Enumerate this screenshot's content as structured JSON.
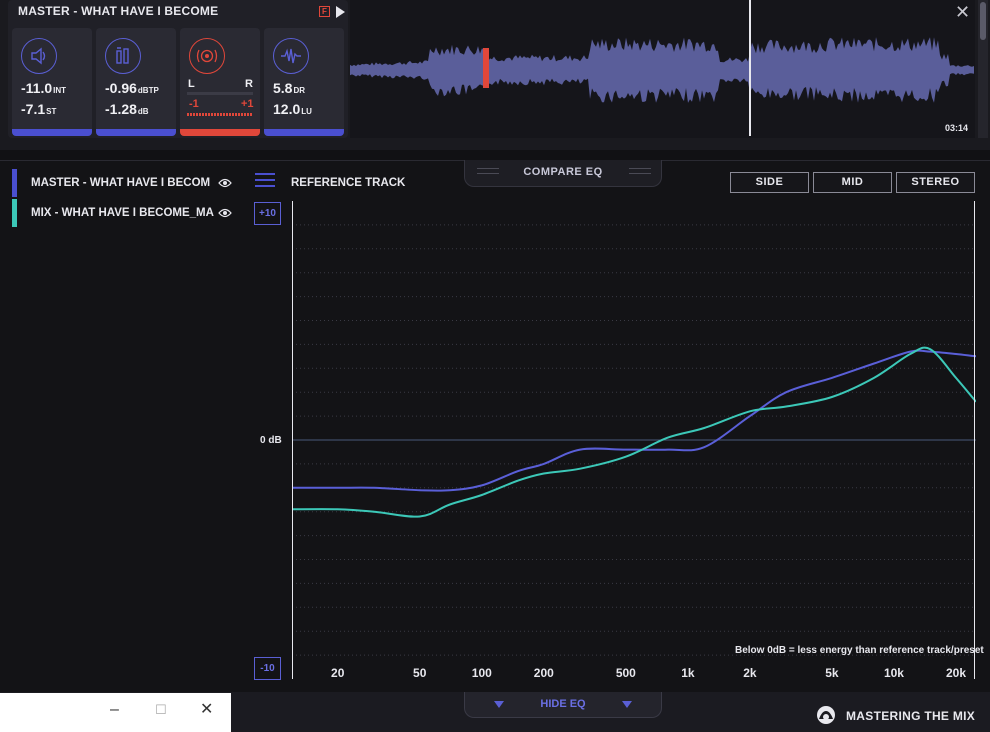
{
  "master": {
    "title": "MASTER - WHAT HAVE I BECOME",
    "format_icon": "F",
    "meters": [
      {
        "icon": "speaker-icon",
        "line1_value": "-11.0",
        "line1_unit": "INT",
        "line2_value": "-7.1",
        "line2_unit": "ST"
      },
      {
        "icon": "level-meter-icon",
        "line1_value": "-0.96",
        "line1_unit": "dBTP",
        "line2_value": "-1.28",
        "line2_unit": "dB"
      },
      {
        "icon": "stereo-field-icon",
        "left_label": "L",
        "right_label": "R",
        "minus_label": "-1",
        "plus_label": "+1"
      },
      {
        "icon": "waveform-icon",
        "line1_value": "5.8",
        "line1_unit": "DR",
        "line2_value": "12.0",
        "line2_unit": "LU"
      }
    ],
    "time": "03:14"
  },
  "compare_tab": {
    "label": "COMPARE EQ"
  },
  "tracks": [
    {
      "name": "MASTER - WHAT HAVE I BECOM",
      "color": "#4a4fd0"
    },
    {
      "name": "MIX - WHAT HAVE I BECOME_MA",
      "color": "#3cc8b8"
    }
  ],
  "reference": {
    "label": "REFERENCE TRACK"
  },
  "modes": {
    "side": "SIDE",
    "mid": "MID",
    "stereo": "STEREO"
  },
  "scale": {
    "top": "+10",
    "bottom": "-10",
    "zero": "0 dB"
  },
  "note": "Below 0dB = less energy than reference track/preset",
  "hide_eq": {
    "label": "HIDE EQ"
  },
  "brand": {
    "name": "MASTERING THE MIX"
  },
  "window_controls": {
    "minimize": "–",
    "maximize": "☐",
    "close": "✕"
  },
  "close_top": "✕",
  "chart_data": {
    "type": "line",
    "xlabel": "",
    "ylabel": "",
    "x_scale": "log",
    "x_tick_labels": [
      "20",
      "50",
      "100",
      "200",
      "500",
      "1k",
      "2k",
      "5k",
      "10k",
      "20k"
    ],
    "x_ticks": [
      20,
      50,
      100,
      200,
      500,
      1000,
      2000,
      5000,
      10000,
      20000
    ],
    "xlim": [
      12,
      25000
    ],
    "ylim": [
      -10,
      10
    ],
    "grid": true,
    "series": [
      {
        "name": "MASTER - WHAT HAVE I BECOM",
        "color": "#5a5fd8",
        "x": [
          12,
          20,
          30,
          50,
          70,
          100,
          150,
          200,
          300,
          500,
          800,
          1200,
          2000,
          3000,
          5000,
          8000,
          12000,
          15000,
          20000,
          25000
        ],
        "y": [
          -2.0,
          -2.0,
          -2.0,
          -2.1,
          -2.1,
          -1.9,
          -1.3,
          -1.0,
          -0.4,
          -0.4,
          -0.4,
          -0.3,
          1.0,
          2.0,
          2.6,
          3.2,
          3.7,
          3.7,
          3.6,
          3.5
        ]
      },
      {
        "name": "MIX - WHAT HAVE I BECOME_MA",
        "color": "#3cc8b8",
        "x": [
          12,
          20,
          30,
          50,
          70,
          100,
          150,
          200,
          300,
          500,
          800,
          1200,
          2000,
          3000,
          5000,
          8000,
          12000,
          15000,
          20000,
          25000
        ],
        "y": [
          -2.9,
          -2.9,
          -3.0,
          -3.2,
          -2.7,
          -2.3,
          -1.7,
          -1.4,
          -1.2,
          -0.7,
          0.1,
          0.5,
          1.2,
          1.4,
          1.8,
          2.6,
          3.6,
          3.8,
          2.6,
          1.6
        ]
      }
    ]
  }
}
